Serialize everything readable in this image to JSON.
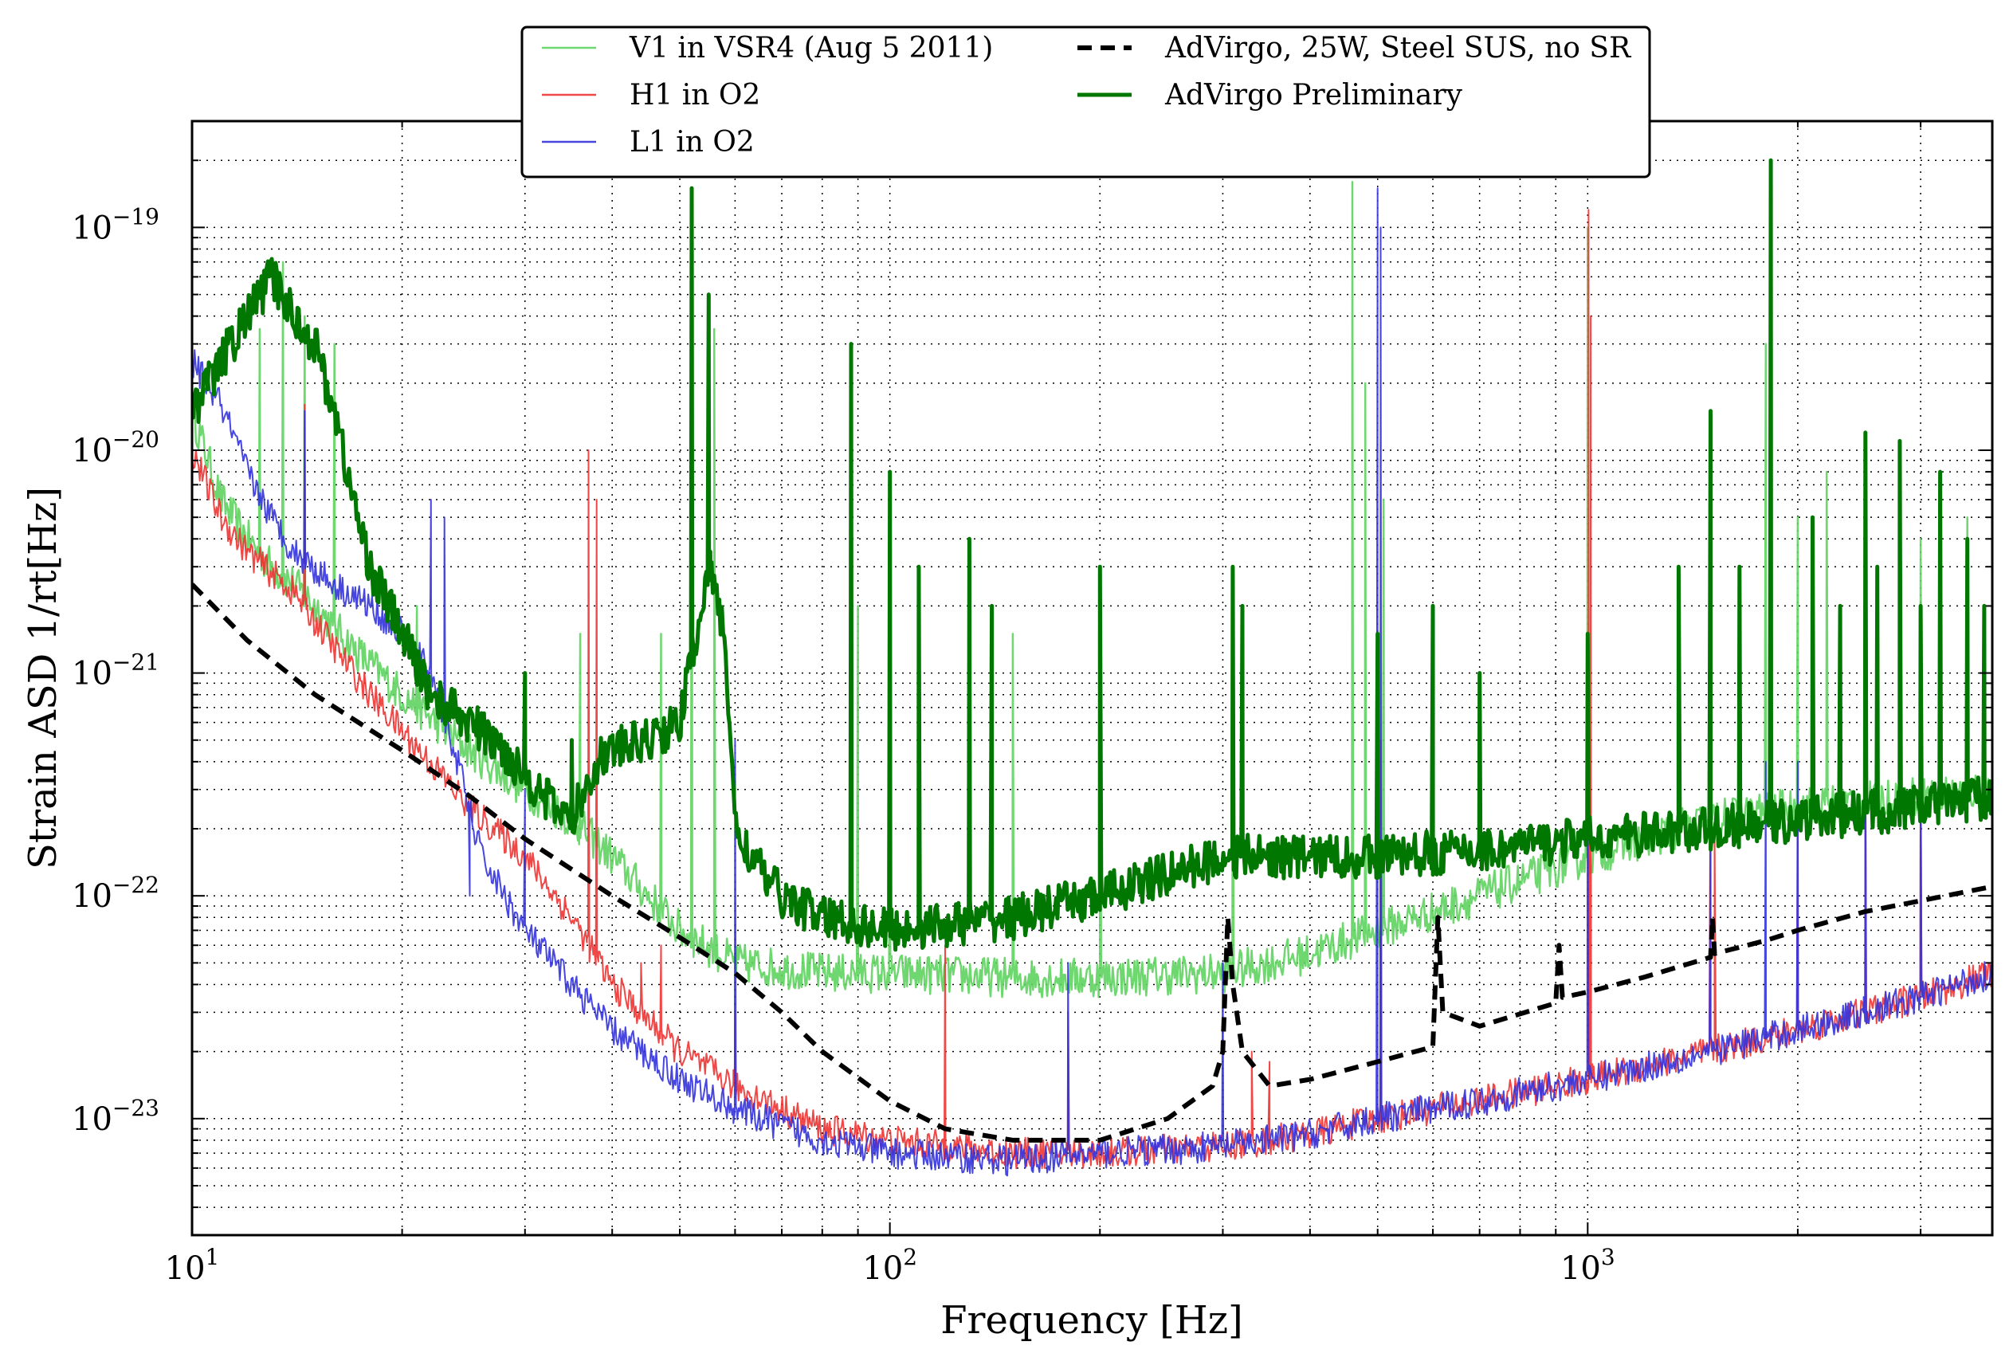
{
  "chart_data": {
    "type": "line",
    "xlabel": "Frequency [Hz]",
    "ylabel": "Strain ASD 1/rt[Hz]",
    "xscale": "log",
    "yscale": "log",
    "xlim": [
      10,
      3800
    ],
    "ylim": [
      3e-24,
      3e-19
    ],
    "grid": true,
    "legend_position": "top-center",
    "x_ticks": [
      {
        "value": 10,
        "base": "10",
        "exp": "1"
      },
      {
        "value": 100,
        "base": "10",
        "exp": "2"
      },
      {
        "value": 1000,
        "base": "10",
        "exp": "3"
      }
    ],
    "y_ticks": [
      {
        "value": 1e-19,
        "base": "10",
        "exp": "−19"
      },
      {
        "value": 1e-20,
        "base": "10",
        "exp": "−20"
      },
      {
        "value": 1e-21,
        "base": "10",
        "exp": "−21"
      },
      {
        "value": 1e-22,
        "base": "10",
        "exp": "−22"
      },
      {
        "value": 1e-23,
        "base": "10",
        "exp": "−23"
      }
    ],
    "series": [
      {
        "name": "V1 in VSR4 (Aug 5 2011)",
        "color": "#5fd35f",
        "style": "solid",
        "width": 2.5,
        "opacity": 0.9,
        "noise": 0.09,
        "points": [
          [
            10,
            1.5e-20
          ],
          [
            11,
            6e-21
          ],
          [
            12,
            4e-21
          ],
          [
            13,
            3e-21
          ],
          [
            14,
            2.5e-21
          ],
          [
            15,
            2e-21
          ],
          [
            17,
            1.3e-21
          ],
          [
            20,
            8e-22
          ],
          [
            25,
            4.5e-22
          ],
          [
            30,
            3e-22
          ],
          [
            35,
            2.2e-22
          ],
          [
            40,
            1.5e-22
          ],
          [
            45,
            1e-22
          ],
          [
            50,
            7e-23
          ],
          [
            60,
            5e-23
          ],
          [
            80,
            4.5e-23
          ],
          [
            100,
            4.5e-23
          ],
          [
            150,
            4.3e-23
          ],
          [
            200,
            4.3e-23
          ],
          [
            300,
            4.5e-23
          ],
          [
            400,
            5.5e-23
          ],
          [
            500,
            7e-23
          ],
          [
            700,
            1e-22
          ],
          [
            1000,
            1.5e-22
          ],
          [
            1500,
            2.2e-22
          ],
          [
            2000,
            2.5e-22
          ],
          [
            3000,
            2.8e-22
          ],
          [
            3800,
            3e-22
          ]
        ],
        "peaks": [
          [
            12.5,
            3.5e-20
          ],
          [
            13.5,
            7e-20
          ],
          [
            14.5,
            4e-20
          ],
          [
            16,
            3e-20
          ],
          [
            21,
            2e-21
          ],
          [
            36,
            1.5e-21
          ],
          [
            47,
            1.5e-21
          ],
          [
            52,
            1.2e-19
          ],
          [
            56,
            3.5e-20
          ],
          [
            90,
            2e-21
          ],
          [
            100,
            1.5e-21
          ],
          [
            150,
            1.5e-21
          ],
          [
            200,
            3e-21
          ],
          [
            310,
            2.5e-21
          ],
          [
            460,
            1.6e-19
          ],
          [
            480,
            2e-20
          ],
          [
            510,
            6e-21
          ],
          [
            1000,
            1e-19
          ],
          [
            1500,
            5e-21
          ],
          [
            1800,
            3e-20
          ],
          [
            2000,
            5e-21
          ],
          [
            2200,
            8e-21
          ],
          [
            2500,
            1e-20
          ],
          [
            3000,
            4e-21
          ],
          [
            3500,
            5e-21
          ]
        ]
      },
      {
        "name": "H1 in O2",
        "color": "#ee3333",
        "style": "solid",
        "width": 2,
        "opacity": 0.9,
        "noise": 0.07,
        "points": [
          [
            10,
            1e-20
          ],
          [
            11,
            5e-21
          ],
          [
            12,
            3.5e-21
          ],
          [
            14,
            2.3e-21
          ],
          [
            16,
            1.3e-21
          ],
          [
            18,
            8e-22
          ],
          [
            20,
            5.5e-22
          ],
          [
            25,
            2.5e-22
          ],
          [
            30,
            1.5e-22
          ],
          [
            35,
            8e-23
          ],
          [
            40,
            4e-23
          ],
          [
            50,
            2e-23
          ],
          [
            60,
            1.4e-23
          ],
          [
            80,
            9e-24
          ],
          [
            100,
            8e-24
          ],
          [
            150,
            7e-24
          ],
          [
            200,
            7e-24
          ],
          [
            300,
            7.5e-24
          ],
          [
            400,
            8.5e-24
          ],
          [
            500,
            1e-23
          ],
          [
            700,
            1.2e-23
          ],
          [
            1000,
            1.5e-23
          ],
          [
            1500,
            2e-23
          ],
          [
            2000,
            2.5e-23
          ],
          [
            3000,
            3.5e-23
          ],
          [
            3800,
            4.5e-23
          ]
        ],
        "peaks": [
          [
            14.5,
            1.6e-20
          ],
          [
            37,
            1e-20
          ],
          [
            38,
            6e-21
          ],
          [
            44,
            5e-23
          ],
          [
            47,
            6e-23
          ],
          [
            60,
            3e-23
          ],
          [
            120,
            6e-23
          ],
          [
            180,
            3e-23
          ],
          [
            330,
            2e-23
          ],
          [
            350,
            1.8e-23
          ],
          [
            505,
            5e-22
          ],
          [
            1003,
            1.2e-19
          ],
          [
            1010,
            4e-20
          ],
          [
            1500,
            5e-22
          ],
          [
            1520,
            2e-22
          ],
          [
            2000,
            2e-22
          ],
          [
            2500,
            4e-22
          ],
          [
            3000,
            5e-22
          ]
        ]
      },
      {
        "name": "L1 in O2",
        "color": "#3333dd",
        "style": "solid",
        "width": 2,
        "opacity": 0.9,
        "noise": 0.07,
        "points": [
          [
            10,
            2.5e-20
          ],
          [
            11,
            1.6e-20
          ],
          [
            12,
            8e-21
          ],
          [
            13,
            5e-21
          ],
          [
            14,
            3.5e-21
          ],
          [
            16,
            2.5e-21
          ],
          [
            18,
            2e-21
          ],
          [
            20,
            1.5e-21
          ],
          [
            22,
            1e-21
          ],
          [
            24,
            4e-22
          ],
          [
            26,
            1.5e-22
          ],
          [
            30,
            7e-23
          ],
          [
            35,
            4e-23
          ],
          [
            40,
            2.5e-23
          ],
          [
            50,
            1.5e-23
          ],
          [
            60,
            1.1e-23
          ],
          [
            80,
            8e-24
          ],
          [
            100,
            7e-24
          ],
          [
            150,
            6.5e-24
          ],
          [
            200,
            7e-24
          ],
          [
            300,
            7.5e-24
          ],
          [
            400,
            8.5e-24
          ],
          [
            500,
            1e-23
          ],
          [
            700,
            1.2e-23
          ],
          [
            1000,
            1.5e-23
          ],
          [
            1500,
            2e-23
          ],
          [
            2000,
            2.5e-23
          ],
          [
            3000,
            3.5e-23
          ],
          [
            3800,
            4.5e-23
          ]
        ],
        "peaks": [
          [
            14.5,
            1.5e-20
          ],
          [
            22,
            6e-21
          ],
          [
            23,
            5e-21
          ],
          [
            25,
            1e-22
          ],
          [
            30,
            3e-22
          ],
          [
            60,
            5e-22
          ],
          [
            180,
            5e-23
          ],
          [
            300,
            5e-23
          ],
          [
            500,
            1.5e-19
          ],
          [
            505,
            1e-19
          ],
          [
            1000,
            5e-22
          ],
          [
            1500,
            2e-22
          ],
          [
            1800,
            4e-22
          ],
          [
            2000,
            4e-22
          ],
          [
            2500,
            5e-22
          ],
          [
            3000,
            4e-22
          ]
        ]
      },
      {
        "name": "AdVirgo, 25W, Steel SUS, no SR",
        "color": "#000000",
        "style": "dashed",
        "width": 6,
        "opacity": 1,
        "noise": 0,
        "points": [
          [
            10,
            2.5e-21
          ],
          [
            12,
            1.4e-21
          ],
          [
            15,
            8e-22
          ],
          [
            20,
            4.5e-22
          ],
          [
            25,
            2.8e-22
          ],
          [
            30,
            1.8e-22
          ],
          [
            40,
            1e-22
          ],
          [
            50,
            6.5e-23
          ],
          [
            60,
            4.5e-23
          ],
          [
            70,
            3e-23
          ],
          [
            80,
            2e-23
          ],
          [
            100,
            1.2e-23
          ],
          [
            120,
            9e-24
          ],
          [
            150,
            8e-24
          ],
          [
            200,
            8e-24
          ],
          [
            250,
            1e-23
          ],
          [
            290,
            1.4e-23
          ],
          [
            300,
            2e-23
          ],
          [
            305,
            8e-23
          ],
          [
            310,
            4e-23
          ],
          [
            320,
            2e-23
          ],
          [
            350,
            1.4e-23
          ],
          [
            400,
            1.5e-23
          ],
          [
            500,
            1.8e-23
          ],
          [
            600,
            2.1e-23
          ],
          [
            610,
            8e-23
          ],
          [
            620,
            3e-23
          ],
          [
            700,
            2.6e-23
          ],
          [
            900,
            3.3e-23
          ],
          [
            910,
            6e-23
          ],
          [
            920,
            3.5e-23
          ],
          [
            1000,
            3.7e-23
          ],
          [
            1200,
            4.3e-23
          ],
          [
            1500,
            5.3e-23
          ],
          [
            1510,
            8e-23
          ],
          [
            1520,
            5.5e-23
          ],
          [
            1800,
            6.3e-23
          ],
          [
            2000,
            7e-23
          ],
          [
            2500,
            8.5e-23
          ],
          [
            3000,
            9.5e-23
          ],
          [
            3800,
            1.1e-22
          ]
        ]
      },
      {
        "name": "AdVirgo Preliminary",
        "color": "#007700",
        "style": "solid",
        "width": 5,
        "opacity": 1,
        "noise": 0.1,
        "points": [
          [
            10,
            1.5e-20
          ],
          [
            11,
            2.5e-20
          ],
          [
            12,
            4e-20
          ],
          [
            13,
            6e-20
          ],
          [
            14,
            4e-20
          ],
          [
            15,
            3e-20
          ],
          [
            16,
            1.5e-20
          ],
          [
            17,
            6e-21
          ],
          [
            18,
            3e-21
          ],
          [
            20,
            1.5e-21
          ],
          [
            22,
            8e-22
          ],
          [
            25,
            6e-22
          ],
          [
            28,
            4.5e-22
          ],
          [
            30,
            3.5e-22
          ],
          [
            33,
            2.5e-22
          ],
          [
            35,
            2.2e-22
          ],
          [
            38,
            4e-22
          ],
          [
            40,
            4.5e-22
          ],
          [
            45,
            5e-22
          ],
          [
            50,
            6e-22
          ],
          [
            55,
            3e-21
          ],
          [
            58,
            1.5e-21
          ],
          [
            60,
            2e-22
          ],
          [
            65,
            1.3e-22
          ],
          [
            70,
            1e-22
          ],
          [
            80,
            8e-23
          ],
          [
            100,
            7e-23
          ],
          [
            150,
            8e-23
          ],
          [
            200,
            1e-22
          ],
          [
            300,
            1.5e-22
          ],
          [
            400,
            1.5e-22
          ],
          [
            500,
            1.5e-22
          ],
          [
            700,
            1.6e-22
          ],
          [
            1000,
            1.8e-22
          ],
          [
            1500,
            2e-22
          ],
          [
            2000,
            2.2e-22
          ],
          [
            3000,
            2.5e-22
          ],
          [
            3800,
            2.8e-22
          ]
        ],
        "peaks": [
          [
            30,
            1e-21
          ],
          [
            35,
            5e-22
          ],
          [
            52,
            1.5e-19
          ],
          [
            55,
            5e-20
          ],
          [
            88,
            3e-20
          ],
          [
            100,
            8e-21
          ],
          [
            110,
            3e-21
          ],
          [
            130,
            4e-21
          ],
          [
            140,
            2e-21
          ],
          [
            200,
            3e-21
          ],
          [
            310,
            3e-21
          ],
          [
            320,
            2e-21
          ],
          [
            500,
            1.5e-21
          ],
          [
            600,
            2e-21
          ],
          [
            700,
            1e-21
          ],
          [
            1000,
            1.5e-21
          ],
          [
            1350,
            3e-21
          ],
          [
            1500,
            1.5e-20
          ],
          [
            1650,
            3e-21
          ],
          [
            1830,
            2e-19
          ],
          [
            2100,
            5e-21
          ],
          [
            2300,
            2e-21
          ],
          [
            2500,
            1.2e-20
          ],
          [
            2600,
            3e-21
          ],
          [
            2800,
            1.1e-20
          ],
          [
            3000,
            2e-21
          ],
          [
            3200,
            8e-21
          ],
          [
            3500,
            4e-21
          ],
          [
            3700,
            2e-21
          ]
        ]
      }
    ]
  }
}
